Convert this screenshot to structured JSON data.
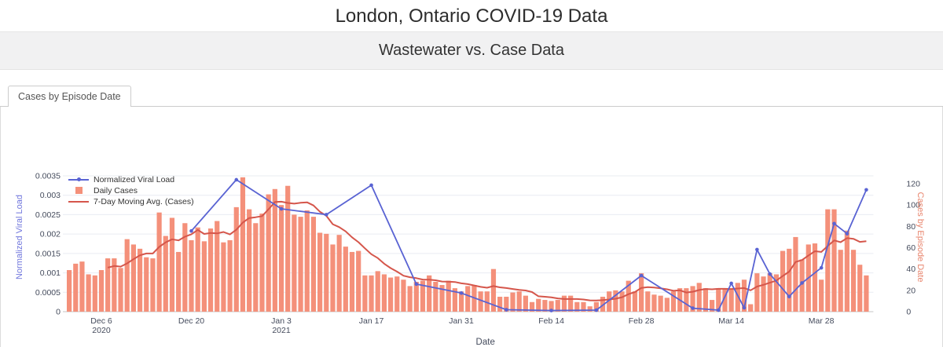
{
  "page": {
    "title": "London, Ontario COVID-19 Data",
    "subtitle": "Wastewater vs. Case Data"
  },
  "tabs": [
    {
      "label": "Cases by Episode Date",
      "active": true
    }
  ],
  "chart_data": {
    "type": "bar",
    "title": "",
    "xlabel": "Date",
    "grid": true,
    "legend_position": "top-left",
    "y_left": {
      "label": "Normalized Viral Load",
      "range": [
        0,
        0.0035
      ],
      "ticks": [
        "0",
        "0.0005",
        "0.001",
        "0.0015",
        "0.002",
        "0.0025",
        "0.003",
        "0.0035"
      ],
      "color": "#7177dd"
    },
    "y_right": {
      "label": "Cases by Episode Date",
      "range": [
        0,
        120
      ],
      "ticks": [
        "0",
        "20",
        "40",
        "60",
        "80",
        "100",
        "120"
      ],
      "color": "#e8836b"
    },
    "x_ticks": [
      {
        "date": "2020-12-06",
        "label": "Dec 6",
        "sub": "2020"
      },
      {
        "date": "2020-12-20",
        "label": "Dec 20",
        "sub": ""
      },
      {
        "date": "2021-01-03",
        "label": "Jan 3",
        "sub": "2021"
      },
      {
        "date": "2021-01-17",
        "label": "Jan 17",
        "sub": ""
      },
      {
        "date": "2021-01-31",
        "label": "Jan 31",
        "sub": ""
      },
      {
        "date": "2021-02-14",
        "label": "Feb 14",
        "sub": ""
      },
      {
        "date": "2021-02-28",
        "label": "Feb 28",
        "sub": ""
      },
      {
        "date": "2021-03-14",
        "label": "Mar 14",
        "sub": ""
      },
      {
        "date": "2021-03-28",
        "label": "Mar 28",
        "sub": ""
      }
    ],
    "series": [
      {
        "name": "Normalized Viral Load",
        "type": "line+markers",
        "axis": "left",
        "color": "#5963d3",
        "points": [
          [
            "2020-12-20",
            0.00208
          ],
          [
            "2020-12-27",
            0.0034
          ],
          [
            "2021-01-03",
            0.00265
          ],
          [
            "2021-01-10",
            0.0025
          ],
          [
            "2021-01-17",
            0.00326
          ],
          [
            "2021-01-24",
            0.00071
          ],
          [
            "2021-01-31",
            0.00048
          ],
          [
            "2021-02-07",
            5e-05
          ],
          [
            "2021-02-14",
            3e-05
          ],
          [
            "2021-02-21",
            4e-05
          ],
          [
            "2021-02-28",
            0.00093
          ],
          [
            "2021-03-08",
            9e-05
          ],
          [
            "2021-03-12",
            4e-05
          ],
          [
            "2021-03-14",
            0.00073
          ],
          [
            "2021-03-16",
            0.0001
          ],
          [
            "2021-03-18",
            0.0016
          ],
          [
            "2021-03-20",
            0.00097
          ],
          [
            "2021-03-23",
            0.00039
          ],
          [
            "2021-03-25",
            0.00074
          ],
          [
            "2021-03-28",
            0.00113
          ],
          [
            "2021-03-30",
            0.00227
          ],
          [
            "2021-04-01",
            0.00201
          ],
          [
            "2021-04-04",
            0.00314
          ]
        ]
      },
      {
        "name": "Daily Cases",
        "type": "bar",
        "axis": "right",
        "color": "#f4907a",
        "start_date": "2020-12-01",
        "values": [
          39,
          45,
          47,
          35,
          34,
          39,
          50,
          50,
          41,
          68,
          63,
          59,
          51,
          50,
          93,
          71,
          88,
          56,
          83,
          67,
          79,
          66,
          78,
          85,
          65,
          67,
          98,
          126,
          96,
          83,
          92,
          110,
          115,
          100,
          118,
          91,
          89,
          95,
          89,
          74,
          73,
          63,
          72,
          61,
          56,
          57,
          34,
          34,
          38,
          35,
          32,
          33,
          30,
          24,
          28,
          29,
          34,
          28,
          25,
          29,
          22,
          19,
          24,
          25,
          19,
          19,
          40,
          14,
          14,
          18,
          19,
          15,
          9,
          12,
          11,
          10,
          11,
          15,
          15,
          9,
          9,
          5,
          9,
          14,
          19,
          20,
          19,
          29,
          19,
          36,
          19,
          16,
          15,
          13,
          19,
          22,
          22,
          24,
          27,
          22,
          11,
          22,
          22,
          21,
          27,
          30,
          7,
          36,
          33,
          36,
          35,
          57,
          59,
          70,
          49,
          63,
          64,
          30,
          96,
          96,
          58,
          76,
          58,
          44,
          34
        ]
      },
      {
        "name": "7-Day Moving Avg. (Cases)",
        "type": "line",
        "axis": "right",
        "color": "#d5564b",
        "derived": "trailing 7-day mean of Daily Cases"
      }
    ]
  }
}
